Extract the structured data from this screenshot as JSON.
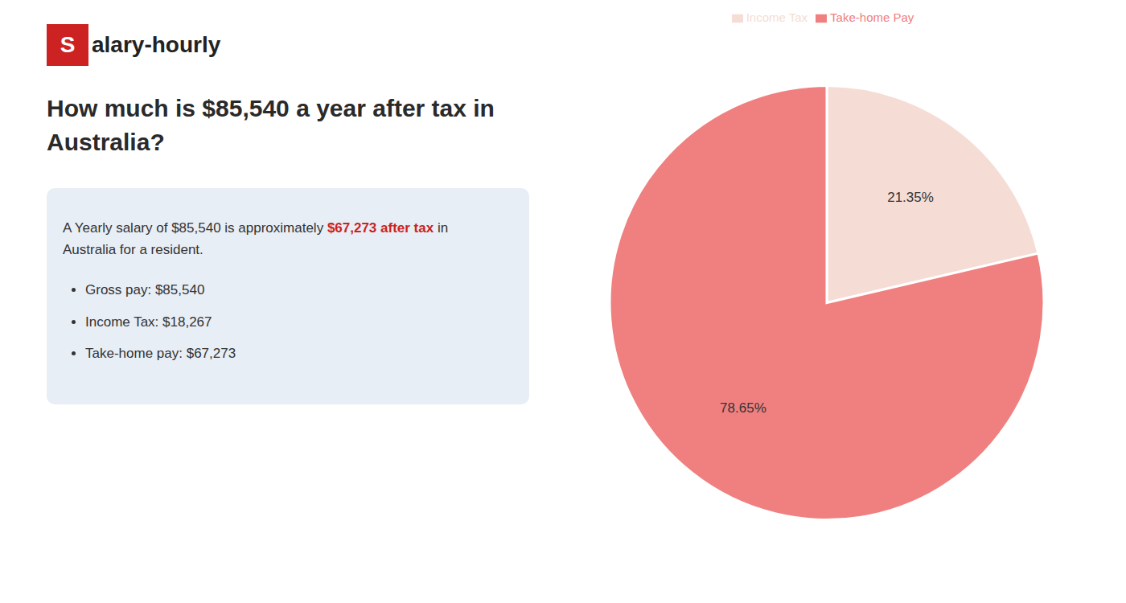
{
  "chart_data": {
    "type": "pie",
    "title": "How much is $85,540 a year after tax in\nAustralia?",
    "annotations": [
      "S",
      "alary-hourly",
      "A Yearly salary of $85,540 is approximately ",
      "$67,273 after tax",
      " in",
      "Australia for a resident.",
      "Gross pay: $85,540",
      "Income Tax: $18,267",
      "Take-home pay: $67,273"
    ],
    "categories": [
      "Income Tax",
      "Take-home Pay"
    ],
    "values": [
      21.35,
      78.65
    ],
    "value_labels": [
      "21.35%",
      "78.65%"
    ],
    "data_labels": true,
    "colors": [
      "#f5ddd5",
      "#f08080"
    ],
    "legend": "top"
  }
}
